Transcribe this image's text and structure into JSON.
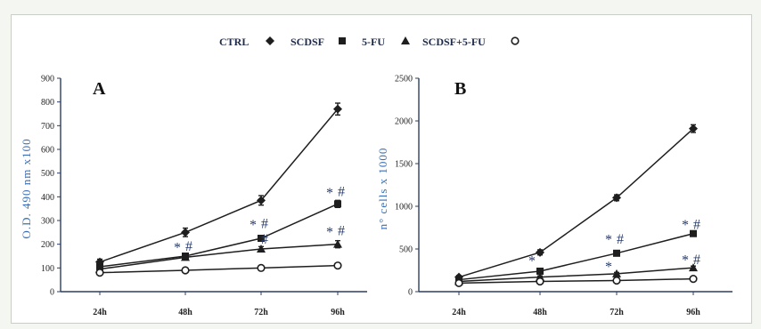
{
  "legend": {
    "entries": [
      {
        "label": "CTRL",
        "marker": "diamond"
      },
      {
        "label": "SCDSF",
        "marker": "square"
      },
      {
        "label": "5-FU",
        "marker": "triangle"
      },
      {
        "label": "SCDSF+5-FU",
        "marker": "circle"
      }
    ]
  },
  "colors": {
    "line": "#1e1e1e",
    "axis": "#2c3e63",
    "ylabel": "#3b6fb5",
    "annotation": "#263a6b"
  },
  "chart_data": [
    {
      "type": "line",
      "panel_label": "A",
      "title": "",
      "xlabel": "",
      "ylabel": "O.D. 490 nm x100",
      "categories": [
        "24h",
        "48h",
        "72h",
        "96h"
      ],
      "ylim": [
        0,
        900
      ],
      "yticks": [
        0,
        100,
        200,
        300,
        400,
        500,
        600,
        700,
        800,
        900
      ],
      "series": [
        {
          "name": "CTRL",
          "marker": "diamond",
          "values": [
            125,
            250,
            385,
            770
          ],
          "errors": [
            12,
            18,
            20,
            25
          ]
        },
        {
          "name": "SCDSF",
          "marker": "square",
          "values": [
            105,
            150,
            225,
            370
          ],
          "errors": [
            8,
            10,
            12,
            15
          ]
        },
        {
          "name": "5-FU",
          "marker": "triangle",
          "values": [
            95,
            145,
            180,
            200
          ],
          "errors": [
            8,
            10,
            10,
            15
          ]
        },
        {
          "name": "SCDSF+5-FU",
          "marker": "circle",
          "values": [
            80,
            90,
            100,
            110
          ],
          "errors": [
            6,
            6,
            6,
            8
          ]
        }
      ],
      "annotations": [
        {
          "text": "*",
          "x": "48h",
          "y": 190
        },
        {
          "text": "#",
          "x": "48h",
          "y": 195
        },
        {
          "text": "*",
          "x": "72h",
          "y": 285
        },
        {
          "text": "#",
          "x": "72h",
          "y": 290
        },
        {
          "text": "#",
          "x": "72h",
          "y": 225
        },
        {
          "text": "*",
          "x": "96h",
          "y": 420
        },
        {
          "text": "#",
          "x": "96h",
          "y": 425
        },
        {
          "text": "*",
          "x": "96h",
          "y": 255
        },
        {
          "text": "#",
          "x": "96h",
          "y": 260
        }
      ]
    },
    {
      "type": "line",
      "panel_label": "B",
      "title": "",
      "xlabel": "",
      "ylabel": "n° cells x 1000",
      "categories": [
        "24h",
        "48h",
        "72h",
        "96h"
      ],
      "ylim": [
        0,
        2500
      ],
      "yticks": [
        0,
        500,
        1000,
        1500,
        2000,
        2500
      ],
      "series": [
        {
          "name": "CTRL",
          "marker": "diamond",
          "values": [
            170,
            460,
            1100,
            1910
          ],
          "errors": [
            20,
            30,
            35,
            45
          ]
        },
        {
          "name": "SCDSF",
          "marker": "square",
          "values": [
            140,
            240,
            450,
            680
          ],
          "errors": [
            15,
            20,
            25,
            30
          ]
        },
        {
          "name": "5-FU",
          "marker": "triangle",
          "values": [
            120,
            170,
            210,
            280
          ],
          "errors": [
            10,
            15,
            15,
            20
          ]
        },
        {
          "name": "SCDSF+5-FU",
          "marker": "circle",
          "values": [
            100,
            120,
            130,
            150
          ],
          "errors": [
            10,
            10,
            10,
            10
          ]
        }
      ],
      "annotations": [
        {
          "text": "*",
          "x": "48h",
          "y": 370
        },
        {
          "text": "*",
          "x": "72h",
          "y": 620
        },
        {
          "text": "#",
          "x": "72h",
          "y": 625
        },
        {
          "text": "*",
          "x": "72h",
          "y": 300
        },
        {
          "text": "*",
          "x": "96h",
          "y": 790
        },
        {
          "text": "#",
          "x": "96h",
          "y": 795
        },
        {
          "text": "*",
          "x": "96h",
          "y": 380
        },
        {
          "text": "#",
          "x": "96h",
          "y": 385
        }
      ]
    }
  ]
}
